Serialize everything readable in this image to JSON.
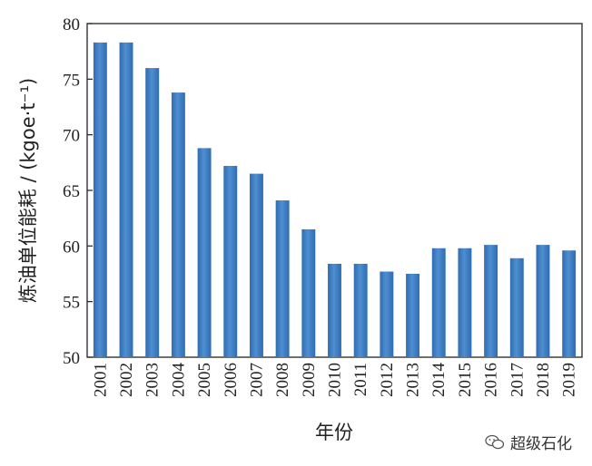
{
  "chart_data": {
    "type": "bar",
    "categories": [
      "2001",
      "2002",
      "2003",
      "2004",
      "2005",
      "2006",
      "2007",
      "2008",
      "2009",
      "2010",
      "2011",
      "2012",
      "2013",
      "2014",
      "2015",
      "2016",
      "2017",
      "2018",
      "2019"
    ],
    "values": [
      78.3,
      78.3,
      76.0,
      73.8,
      68.8,
      67.2,
      66.5,
      64.1,
      61.5,
      58.4,
      58.4,
      57.7,
      57.5,
      59.8,
      59.8,
      60.1,
      58.9,
      60.1,
      59.6
    ],
    "xlabel": "年份",
    "ylabel": "炼油单位能耗 / (kgoe·t⁻¹)",
    "ylim": [
      50,
      80
    ],
    "yticks": [
      50,
      55,
      60,
      65,
      70,
      75,
      80
    ],
    "bar_color": "#2f6cb3",
    "bar_color_light": "#4f8ed0",
    "grid": false,
    "legend": "none"
  },
  "watermark": {
    "text": "超级石化",
    "icon": "wechat-icon"
  }
}
